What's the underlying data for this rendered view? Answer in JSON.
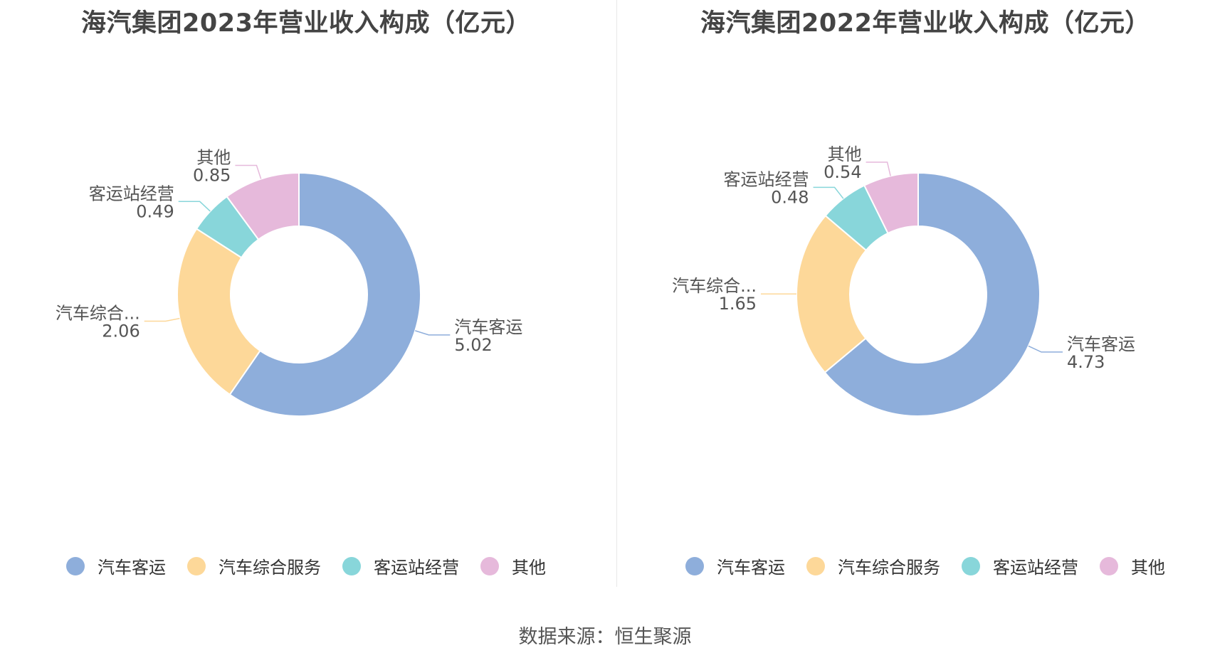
{
  "colors": {
    "汽车客运": "#8eaedb",
    "汽车综合服务": "#fdd899",
    "客运站经营": "#88d6da",
    "其他": "#e6b9db"
  },
  "charts": [
    {
      "title": "海汽集团2023年营业收入构成（亿元）",
      "legend": [
        "汽车客运",
        "汽车综合服务",
        "客运站经营",
        "其他"
      ],
      "slice_labels": [
        {
          "name": "汽车客运",
          "value": "5.02"
        },
        {
          "name": "汽车综合...",
          "value": "2.06"
        },
        {
          "name": "客运站经营",
          "value": "0.49"
        },
        {
          "name": "其他",
          "value": "0.85"
        }
      ]
    },
    {
      "title": "海汽集团2022年营业收入构成（亿元）",
      "legend": [
        "汽车客运",
        "汽车综合服务",
        "客运站经营",
        "其他"
      ],
      "slice_labels": [
        {
          "name": "汽车客运",
          "value": "4.73"
        },
        {
          "name": "汽车综合...",
          "value": "1.65"
        },
        {
          "name": "客运站经营",
          "value": "0.48"
        },
        {
          "name": "其他",
          "value": "0.54"
        }
      ]
    }
  ],
  "source": "数据来源：恒生聚源",
  "chart_data": [
    {
      "type": "pie",
      "title": "海汽集团2023年营业收入构成（亿元）",
      "categories": [
        "汽车客运",
        "汽车综合服务",
        "客运站经营",
        "其他"
      ],
      "values": [
        5.02,
        2.06,
        0.49,
        0.85
      ],
      "legend": "bottom"
    },
    {
      "type": "pie",
      "title": "海汽集团2022年营业收入构成（亿元）",
      "categories": [
        "汽车客运",
        "汽车综合服务",
        "客运站经营",
        "其他"
      ],
      "values": [
        4.73,
        1.65,
        0.48,
        0.54
      ],
      "legend": "bottom"
    }
  ]
}
